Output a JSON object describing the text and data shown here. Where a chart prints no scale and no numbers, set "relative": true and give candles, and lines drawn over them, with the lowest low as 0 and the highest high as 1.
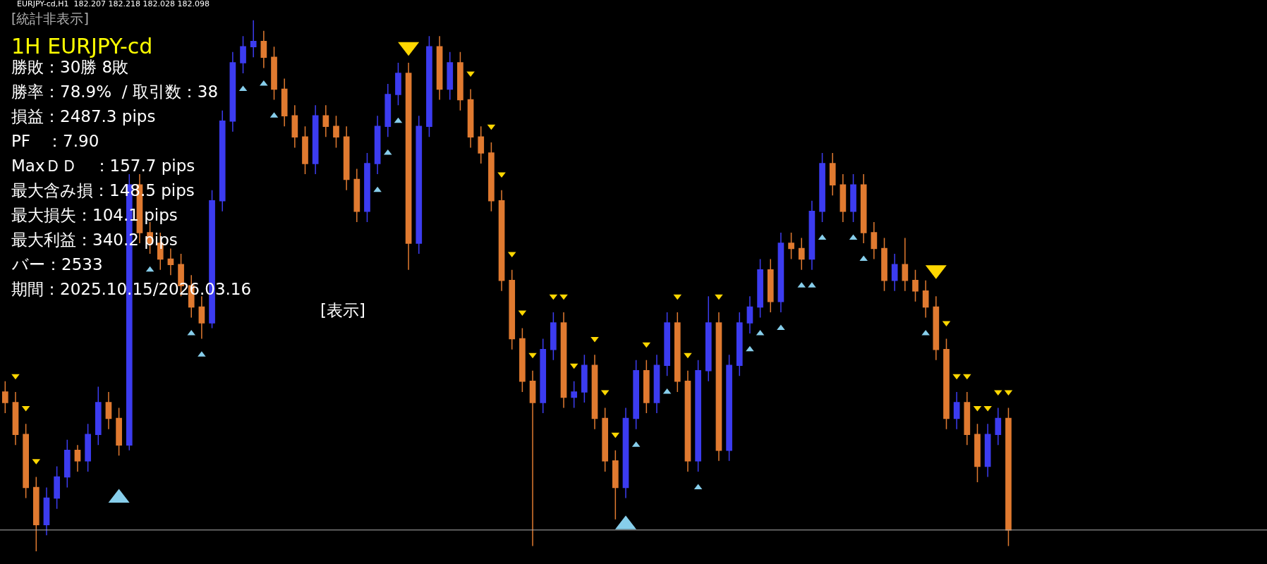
{
  "chart_data": {
    "type": "candlestick",
    "relative": true,
    "tick_labels": false,
    "grid": false,
    "categories": [
      null,
      null,
      null,
      null,
      null,
      null,
      null,
      null,
      null,
      null,
      null,
      null,
      null,
      null,
      null,
      null,
      null,
      null,
      null,
      null,
      null,
      null,
      null,
      null,
      null,
      null,
      null,
      null,
      null,
      null,
      null,
      null,
      null,
      null,
      null,
      null,
      null,
      null,
      null,
      null,
      null,
      null,
      null,
      null,
      null,
      null,
      null,
      null,
      null,
      null,
      null,
      null,
      null,
      null,
      null,
      null,
      null,
      null,
      null,
      null,
      null,
      null,
      null,
      null,
      null,
      null,
      null,
      null,
      null,
      null,
      null,
      null,
      null,
      null,
      null,
      null,
      null,
      null,
      null,
      null,
      null,
      null,
      null,
      null,
      null,
      null,
      null,
      null,
      null,
      null,
      null,
      null,
      null,
      null,
      null,
      null,
      null,
      null
    ],
    "colors": [
      "#e07a30",
      "#e07a30",
      "#e07a30",
      "#e07a30",
      "#3c3cf0",
      "#3c3cf0",
      "#3c3cf0",
      "#e07a30",
      "#3c3cf0",
      "#3c3cf0",
      "#e07a30",
      "#e07a30",
      "#3c3cf0",
      "#e07a30",
      "#e07a30",
      "#e07a30",
      "#e07a30",
      "#e07a30",
      "#e07a30",
      "#e07a30",
      "#3c3cf0",
      "#3c3cf0",
      "#3c3cf0",
      "#3c3cf0",
      "#3c3cf0",
      "#e07a30",
      "#e07a30",
      "#e07a30",
      "#e07a30",
      "#e07a30",
      "#3c3cf0",
      "#e07a30",
      "#e07a30",
      "#e07a30",
      "#e07a30",
      "#3c3cf0",
      "#3c3cf0",
      "#3c3cf0",
      "#3c3cf0",
      "#e07a30",
      "#3c3cf0",
      "#3c3cf0",
      "#e07a30",
      "#3c3cf0",
      "#e07a30",
      "#e07a30",
      "#e07a30",
      "#e07a30",
      "#e07a30",
      "#e07a30",
      "#e07a30",
      "#e07a30",
      "#3c3cf0",
      "#3c3cf0",
      "#e07a30",
      "#3c3cf0",
      "#3c3cf0",
      "#e07a30",
      "#e07a30",
      "#e07a30",
      "#3c3cf0",
      "#3c3cf0",
      "#e07a30",
      "#3c3cf0",
      "#3c3cf0",
      "#e07a30",
      "#e07a30",
      "#3c3cf0",
      "#3c3cf0",
      "#e07a30",
      "#3c3cf0",
      "#3c3cf0",
      "#3c3cf0",
      "#3c3cf0",
      "#e07a30",
      "#3c3cf0",
      "#e07a30",
      "#e07a30",
      "#3c3cf0",
      "#3c3cf0",
      "#e07a30",
      "#e07a30",
      "#3c3cf0",
      "#e07a30",
      "#e07a30",
      "#e07a30",
      "#3c3cf0",
      "#e07a30",
      "#e07a30",
      "#e07a30",
      "#e07a30",
      "#e07a30",
      "#3c3cf0",
      "#e07a30",
      "#e07a30",
      "#3c3cf0",
      "#3c3cf0",
      "#e07a30"
    ],
    "ohlc": [
      [
        0.3,
        0.32,
        0.26,
        0.28
      ],
      [
        0.28,
        0.3,
        0.2,
        0.22
      ],
      [
        0.22,
        0.24,
        0.1,
        0.12
      ],
      [
        0.12,
        0.14,
        0.0,
        0.05
      ],
      [
        0.05,
        0.12,
        0.03,
        0.1
      ],
      [
        0.1,
        0.16,
        0.08,
        0.14
      ],
      [
        0.14,
        0.21,
        0.12,
        0.19
      ],
      [
        0.19,
        0.2,
        0.15,
        0.17
      ],
      [
        0.17,
        0.24,
        0.15,
        0.22
      ],
      [
        0.22,
        0.31,
        0.2,
        0.28
      ],
      [
        0.28,
        0.3,
        0.23,
        0.25
      ],
      [
        0.25,
        0.27,
        0.18,
        0.2
      ],
      [
        0.2,
        0.71,
        0.19,
        0.69
      ],
      [
        0.69,
        0.71,
        0.58,
        0.6
      ],
      [
        0.6,
        0.62,
        0.56,
        0.58
      ],
      [
        0.58,
        0.6,
        0.53,
        0.55
      ],
      [
        0.55,
        0.57,
        0.52,
        0.54
      ],
      [
        0.54,
        0.56,
        0.48,
        0.5
      ],
      [
        0.5,
        0.52,
        0.44,
        0.46
      ],
      [
        0.46,
        0.48,
        0.4,
        0.43
      ],
      [
        0.43,
        0.68,
        0.42,
        0.66
      ],
      [
        0.66,
        0.83,
        0.64,
        0.81
      ],
      [
        0.81,
        0.94,
        0.79,
        0.92
      ],
      [
        0.92,
        0.97,
        0.9,
        0.95
      ],
      [
        0.95,
        1.0,
        0.93,
        0.96
      ],
      [
        0.96,
        0.98,
        0.91,
        0.93
      ],
      [
        0.93,
        0.95,
        0.85,
        0.87
      ],
      [
        0.87,
        0.89,
        0.8,
        0.82
      ],
      [
        0.82,
        0.84,
        0.76,
        0.78
      ],
      [
        0.78,
        0.8,
        0.71,
        0.73
      ],
      [
        0.73,
        0.84,
        0.71,
        0.82
      ],
      [
        0.82,
        0.84,
        0.78,
        0.8
      ],
      [
        0.8,
        0.82,
        0.76,
        0.78
      ],
      [
        0.78,
        0.8,
        0.68,
        0.7
      ],
      [
        0.7,
        0.72,
        0.62,
        0.64
      ],
      [
        0.64,
        0.75,
        0.62,
        0.73
      ],
      [
        0.73,
        0.82,
        0.71,
        0.8
      ],
      [
        0.8,
        0.88,
        0.78,
        0.86
      ],
      [
        0.86,
        0.92,
        0.84,
        0.9
      ],
      [
        0.9,
        0.92,
        0.53,
        0.58
      ],
      [
        0.58,
        0.82,
        0.56,
        0.8
      ],
      [
        0.8,
        0.97,
        0.78,
        0.95
      ],
      [
        0.95,
        0.97,
        0.85,
        0.87
      ],
      [
        0.87,
        0.94,
        0.85,
        0.92
      ],
      [
        0.92,
        0.94,
        0.83,
        0.85
      ],
      [
        0.85,
        0.87,
        0.76,
        0.78
      ],
      [
        0.78,
        0.8,
        0.73,
        0.75
      ],
      [
        0.75,
        0.77,
        0.64,
        0.66
      ],
      [
        0.66,
        0.68,
        0.49,
        0.51
      ],
      [
        0.51,
        0.53,
        0.38,
        0.4
      ],
      [
        0.4,
        0.42,
        0.3,
        0.32
      ],
      [
        0.32,
        0.34,
        0.01,
        0.28
      ],
      [
        0.28,
        0.4,
        0.26,
        0.38
      ],
      [
        0.38,
        0.45,
        0.36,
        0.43
      ],
      [
        0.43,
        0.45,
        0.27,
        0.29
      ],
      [
        0.29,
        0.32,
        0.27,
        0.3
      ],
      [
        0.3,
        0.37,
        0.28,
        0.35
      ],
      [
        0.35,
        0.37,
        0.23,
        0.25
      ],
      [
        0.25,
        0.27,
        0.15,
        0.17
      ],
      [
        0.17,
        0.19,
        0.06,
        0.12
      ],
      [
        0.12,
        0.27,
        0.1,
        0.25
      ],
      [
        0.25,
        0.36,
        0.23,
        0.34
      ],
      [
        0.34,
        0.36,
        0.26,
        0.28
      ],
      [
        0.28,
        0.37,
        0.26,
        0.35
      ],
      [
        0.35,
        0.45,
        0.33,
        0.43
      ],
      [
        0.43,
        0.45,
        0.3,
        0.32
      ],
      [
        0.32,
        0.34,
        0.15,
        0.17
      ],
      [
        0.17,
        0.36,
        0.15,
        0.34
      ],
      [
        0.34,
        0.48,
        0.32,
        0.43
      ],
      [
        0.43,
        0.45,
        0.17,
        0.19
      ],
      [
        0.19,
        0.37,
        0.17,
        0.35
      ],
      [
        0.35,
        0.45,
        0.33,
        0.43
      ],
      [
        0.43,
        0.48,
        0.41,
        0.46
      ],
      [
        0.46,
        0.55,
        0.44,
        0.53
      ],
      [
        0.53,
        0.55,
        0.45,
        0.47
      ],
      [
        0.47,
        0.6,
        0.45,
        0.58
      ],
      [
        0.58,
        0.6,
        0.55,
        0.57
      ],
      [
        0.57,
        0.59,
        0.53,
        0.55
      ],
      [
        0.55,
        0.66,
        0.53,
        0.64
      ],
      [
        0.64,
        0.75,
        0.62,
        0.73
      ],
      [
        0.73,
        0.75,
        0.67,
        0.69
      ],
      [
        0.69,
        0.71,
        0.62,
        0.64
      ],
      [
        0.64,
        0.71,
        0.62,
        0.69
      ],
      [
        0.69,
        0.71,
        0.58,
        0.6
      ],
      [
        0.6,
        0.62,
        0.55,
        0.57
      ],
      [
        0.57,
        0.59,
        0.49,
        0.51
      ],
      [
        0.51,
        0.56,
        0.49,
        0.54
      ],
      [
        0.54,
        0.59,
        0.49,
        0.51
      ],
      [
        0.51,
        0.53,
        0.47,
        0.49
      ],
      [
        0.49,
        0.51,
        0.44,
        0.46
      ],
      [
        0.46,
        0.48,
        0.36,
        0.38
      ],
      [
        0.38,
        0.4,
        0.23,
        0.25
      ],
      [
        0.25,
        0.3,
        0.23,
        0.28
      ],
      [
        0.28,
        0.3,
        0.2,
        0.22
      ],
      [
        0.22,
        0.24,
        0.13,
        0.16
      ],
      [
        0.16,
        0.24,
        0.14,
        0.22
      ],
      [
        0.22,
        0.27,
        0.2,
        0.25
      ],
      [
        0.25,
        0.27,
        0.01,
        0.04
      ]
    ],
    "series": [
      {
        "type": "scatter",
        "marker": "triangle",
        "color": "#87ceeb",
        "values": [
          null,
          null,
          null,
          null,
          null,
          null,
          null,
          null,
          null,
          null,
          null,
          0.1,
          null,
          null,
          null,
          null,
          null,
          null,
          null,
          null,
          null,
          null,
          null,
          null,
          null,
          null,
          null,
          null,
          null,
          null,
          null,
          null,
          null,
          null,
          null,
          null,
          null,
          null,
          null,
          null,
          null,
          null,
          null,
          null,
          null,
          null,
          null,
          null,
          null,
          null,
          null,
          null,
          null,
          null,
          null,
          null,
          null,
          null,
          null,
          null,
          0.05,
          null,
          null,
          null,
          null,
          null,
          null,
          null,
          null,
          null,
          null,
          null,
          null,
          null,
          null,
          null,
          null,
          null,
          null,
          null,
          null,
          null,
          null,
          null,
          null,
          null,
          null,
          null,
          null,
          null,
          null,
          null,
          null,
          null,
          null,
          null,
          null,
          null
        ]
      },
      {
        "type": "scatter",
        "marker": "triangle",
        "color": "#ffd700",
        "values": [
          null,
          null,
          null,
          null,
          null,
          null,
          null,
          null,
          null,
          null,
          null,
          null,
          null,
          null,
          null,
          null,
          null,
          null,
          null,
          null,
          null,
          null,
          null,
          null,
          null,
          null,
          null,
          null,
          null,
          null,
          null,
          null,
          null,
          null,
          null,
          null,
          null,
          null,
          null,
          0.95,
          null,
          null,
          null,
          null,
          null,
          null,
          null,
          null,
          null,
          null,
          null,
          null,
          null,
          null,
          null,
          null,
          null,
          null,
          null,
          null,
          null,
          null,
          null,
          null,
          null,
          null,
          null,
          null,
          null,
          null,
          null,
          null,
          null,
          null,
          null,
          null,
          null,
          null,
          null,
          null,
          null,
          null,
          null,
          null,
          null,
          null,
          null,
          null,
          null,
          null,
          0.53,
          null,
          null,
          null,
          null,
          null,
          null,
          null
        ]
      },
      {
        "type": "scatter",
        "marker": "triangle",
        "color": "#87ceeb",
        "values": [
          null,
          null,
          null,
          null,
          null,
          null,
          null,
          null,
          null,
          null,
          null,
          null,
          null,
          null,
          0.53,
          null,
          null,
          null,
          0.41,
          0.37,
          null,
          null,
          null,
          0.87,
          null,
          0.88,
          0.82,
          null,
          null,
          null,
          null,
          null,
          null,
          null,
          null,
          null,
          0.68,
          0.75,
          0.81,
          null,
          null,
          null,
          null,
          null,
          null,
          null,
          null,
          null,
          null,
          null,
          null,
          null,
          null,
          null,
          null,
          null,
          null,
          null,
          null,
          null,
          null,
          0.2,
          null,
          null,
          0.3,
          null,
          null,
          0.12,
          null,
          null,
          null,
          null,
          0.38,
          0.41,
          null,
          0.42,
          null,
          0.5,
          0.5,
          0.59,
          null,
          null,
          0.59,
          0.55,
          null,
          null,
          null,
          null,
          null,
          0.41,
          null,
          null,
          null,
          null,
          null,
          null,
          null,
          null
        ]
      },
      {
        "type": "scatter",
        "marker": "triangle",
        "color": "#ffd700",
        "values": [
          null,
          0.33,
          0.27,
          0.17,
          null,
          null,
          null,
          null,
          null,
          null,
          null,
          null,
          null,
          null,
          null,
          null,
          null,
          null,
          null,
          null,
          null,
          null,
          null,
          null,
          null,
          null,
          null,
          null,
          null,
          null,
          null,
          null,
          null,
          null,
          null,
          null,
          null,
          null,
          null,
          null,
          null,
          null,
          null,
          null,
          null,
          0.9,
          null,
          0.8,
          0.71,
          0.56,
          0.45,
          0.37,
          null,
          0.48,
          0.48,
          0.35,
          null,
          0.4,
          0.3,
          0.22,
          null,
          null,
          0.39,
          null,
          null,
          0.48,
          0.37,
          null,
          null,
          0.48,
          null,
          null,
          null,
          null,
          null,
          null,
          null,
          null,
          null,
          null,
          null,
          null,
          null,
          null,
          null,
          null,
          null,
          null,
          null,
          null,
          null,
          0.43,
          0.33,
          0.33,
          0.27,
          0.27,
          0.3,
          0.3
        ]
      }
    ],
    "ref_lines": [
      {
        "axis": "y",
        "value": 0.04,
        "color": "#b0b0b0"
      }
    ],
    "annotations": [
      "EURJPY-cd,H1  182.207 182.218 182.028 182.098",
      "[統計非表示]",
      "1H EURJPY-cd",
      "勝敗：30勝 8敗",
      "勝率：78.9%  / 取引数：38",
      "損益：2487.3 pips",
      "PF　：7.90",
      "MaxＤＤ　：157.7 pips",
      "最大含み損：148.5 pips",
      "最大損失：104.1 pips",
      "最大利益：340.2 pips",
      "バー：2533",
      "期間：2025.10.15/2026.03.16",
      "[表示]"
    ]
  }
}
